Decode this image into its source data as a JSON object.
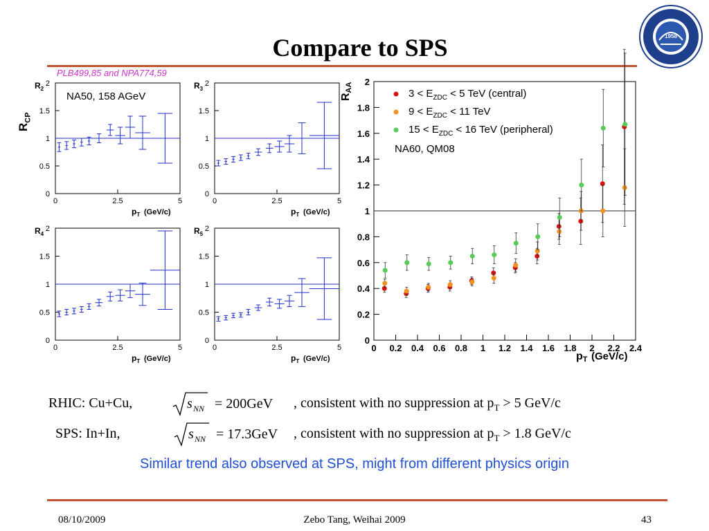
{
  "slide": {
    "title": "Compare to SPS",
    "reference": "PLB499,85 and NPA774,59",
    "main_ylabel_main": "R",
    "main_ylabel_sub": "CP",
    "rhic_line": {
      "prefix": "RHIC: Cu+Cu,",
      "energy": "= 200GeV",
      "suffix": ",  consistent with no suppression at p",
      "tail": " > 5 GeV/c"
    },
    "sps_line": {
      "prefix": "SPS:   In+In,",
      "energy": "= 17.3GeV",
      "suffix": ",  consistent with no suppression at p",
      "tail": " > 1.8 GeV/c"
    },
    "sqrt_label": "s",
    "sqrt_sub": "NN",
    "pt_sub": "T",
    "note": "Similar trend also observed at SPS, might from different physics origin",
    "footer": {
      "date": "08/10/2009",
      "center": "Zebo Tang, Weihai 2009",
      "page": "43"
    },
    "logo": {
      "year": "1958",
      "icon": "university-seal-icon"
    }
  },
  "chart_data": [
    {
      "type": "scatter",
      "panel": "R2",
      "ylabel": "R2",
      "xlabel": "pT (GeV/c)",
      "annotation": "NA50, 158 AGeV",
      "xlim": [
        0,
        5
      ],
      "ylim": [
        0,
        2
      ],
      "xticks": [
        "0",
        "2.5",
        "5"
      ],
      "yticks": [
        "0",
        "0.5",
        "1",
        "1.5",
        "2"
      ],
      "reference_line": 1,
      "points": [
        {
          "x": 0.15,
          "y": 0.84,
          "err": 0.08,
          "xerr": 0.05
        },
        {
          "x": 0.45,
          "y": 0.87,
          "err": 0.07,
          "xerr": 0.05
        },
        {
          "x": 0.75,
          "y": 0.9,
          "err": 0.07,
          "xerr": 0.05
        },
        {
          "x": 1.05,
          "y": 0.93,
          "err": 0.07,
          "xerr": 0.05
        },
        {
          "x": 1.35,
          "y": 0.95,
          "err": 0.07,
          "xerr": 0.05
        },
        {
          "x": 1.75,
          "y": 1.0,
          "err": 0.08,
          "xerr": 0.15
        },
        {
          "x": 2.2,
          "y": 1.15,
          "err": 0.1,
          "xerr": 0.15
        },
        {
          "x": 2.6,
          "y": 1.05,
          "err": 0.15,
          "xerr": 0.2
        },
        {
          "x": 3.0,
          "y": 1.2,
          "err": 0.2,
          "xerr": 0.2
        },
        {
          "x": 3.5,
          "y": 1.1,
          "err": 0.3,
          "xerr": 0.3
        },
        {
          "x": 4.4,
          "y": 1.0,
          "err": 0.45,
          "xerr": 0.6
        }
      ]
    },
    {
      "type": "scatter",
      "panel": "R3",
      "ylabel": "R3",
      "xlabel": "pT (GeV/c)",
      "xlim": [
        0,
        5
      ],
      "ylim": [
        0,
        2
      ],
      "xticks": [
        "0",
        "2.5",
        "5"
      ],
      "yticks": [
        "0",
        "0.5",
        "1",
        "1.5",
        "2"
      ],
      "reference_line": 1,
      "points": [
        {
          "x": 0.15,
          "y": 0.55,
          "err": 0.05,
          "xerr": 0.05
        },
        {
          "x": 0.45,
          "y": 0.58,
          "err": 0.05,
          "xerr": 0.05
        },
        {
          "x": 0.75,
          "y": 0.62,
          "err": 0.05,
          "xerr": 0.05
        },
        {
          "x": 1.05,
          "y": 0.65,
          "err": 0.05,
          "xerr": 0.05
        },
        {
          "x": 1.35,
          "y": 0.68,
          "err": 0.05,
          "xerr": 0.05
        },
        {
          "x": 1.75,
          "y": 0.75,
          "err": 0.06,
          "xerr": 0.15
        },
        {
          "x": 2.2,
          "y": 0.82,
          "err": 0.08,
          "xerr": 0.15
        },
        {
          "x": 2.6,
          "y": 0.85,
          "err": 0.1,
          "xerr": 0.2
        },
        {
          "x": 3.0,
          "y": 0.9,
          "err": 0.15,
          "xerr": 0.2
        },
        {
          "x": 3.5,
          "y": 1.0,
          "err": 0.28,
          "xerr": 0.3
        },
        {
          "x": 4.4,
          "y": 1.05,
          "err": 0.6,
          "xerr": 0.6
        }
      ]
    },
    {
      "type": "scatter",
      "panel": "R4",
      "ylabel": "R4",
      "xlabel": "pT (GeV/c)",
      "xlim": [
        0,
        5
      ],
      "ylim": [
        0,
        2
      ],
      "xticks": [
        "0",
        "2.5",
        "5"
      ],
      "yticks": [
        "0",
        "0.5",
        "1",
        "1.5",
        "2"
      ],
      "reference_line": 1,
      "points": [
        {
          "x": 0.15,
          "y": 0.47,
          "err": 0.05,
          "xerr": 0.05
        },
        {
          "x": 0.45,
          "y": 0.5,
          "err": 0.05,
          "xerr": 0.05
        },
        {
          "x": 0.75,
          "y": 0.52,
          "err": 0.05,
          "xerr": 0.05
        },
        {
          "x": 1.05,
          "y": 0.55,
          "err": 0.05,
          "xerr": 0.05
        },
        {
          "x": 1.35,
          "y": 0.6,
          "err": 0.05,
          "xerr": 0.05
        },
        {
          "x": 1.75,
          "y": 0.67,
          "err": 0.06,
          "xerr": 0.15
        },
        {
          "x": 2.2,
          "y": 0.78,
          "err": 0.08,
          "xerr": 0.15
        },
        {
          "x": 2.6,
          "y": 0.8,
          "err": 0.1,
          "xerr": 0.2
        },
        {
          "x": 3.0,
          "y": 0.88,
          "err": 0.12,
          "xerr": 0.2
        },
        {
          "x": 3.5,
          "y": 0.82,
          "err": 0.2,
          "xerr": 0.3
        },
        {
          "x": 4.4,
          "y": 1.25,
          "err": 0.7,
          "xerr": 0.6
        }
      ]
    },
    {
      "type": "scatter",
      "panel": "R5",
      "ylabel": "R5",
      "xlabel": "pT (GeV/c)",
      "xlim": [
        0,
        5
      ],
      "ylim": [
        0,
        2
      ],
      "xticks": [
        "0",
        "2.5",
        "5"
      ],
      "yticks": [
        "0",
        "0.5",
        "1",
        "1.5",
        "2"
      ],
      "reference_line": 1,
      "points": [
        {
          "x": 0.15,
          "y": 0.38,
          "err": 0.04,
          "xerr": 0.05
        },
        {
          "x": 0.45,
          "y": 0.4,
          "err": 0.04,
          "xerr": 0.05
        },
        {
          "x": 0.75,
          "y": 0.44,
          "err": 0.04,
          "xerr": 0.05
        },
        {
          "x": 1.05,
          "y": 0.45,
          "err": 0.04,
          "xerr": 0.05
        },
        {
          "x": 1.35,
          "y": 0.5,
          "err": 0.05,
          "xerr": 0.05
        },
        {
          "x": 1.75,
          "y": 0.58,
          "err": 0.05,
          "xerr": 0.15
        },
        {
          "x": 2.2,
          "y": 0.68,
          "err": 0.07,
          "xerr": 0.15
        },
        {
          "x": 2.6,
          "y": 0.65,
          "err": 0.08,
          "xerr": 0.2
        },
        {
          "x": 3.0,
          "y": 0.7,
          "err": 0.1,
          "xerr": 0.2
        },
        {
          "x": 3.5,
          "y": 0.85,
          "err": 0.25,
          "xerr": 0.3
        },
        {
          "x": 4.4,
          "y": 0.92,
          "err": 0.55,
          "xerr": 0.6
        }
      ]
    },
    {
      "type": "scatter",
      "panel": "RAA",
      "ylabel": "RAA",
      "xlabel": "pT (GeV/c)",
      "annotation": "NA60, QM08",
      "xlim": [
        0,
        2.4
      ],
      "ylim": [
        0,
        2
      ],
      "xticks": [
        "0",
        "0.2",
        "0.4",
        "0.6",
        "0.8",
        "1",
        "1.2",
        "1.4",
        "1.6",
        "1.8",
        "2",
        "2.2",
        "2.4"
      ],
      "yticks": [
        "0",
        "0.2",
        "0.4",
        "0.6",
        "0.8",
        "1",
        "1.2",
        "1.4",
        "1.6",
        "1.8",
        "2"
      ],
      "reference_line": 1,
      "series": [
        {
          "name": "3 < EZDC < 5 TeV (central)",
          "label_main": "3 < E",
          "label_sub": "ZDC",
          "label_tail": " < 5 TeV (central)",
          "color": "#dd1111",
          "x": [
            0.1,
            0.3,
            0.5,
            0.7,
            0.9,
            1.1,
            1.3,
            1.5,
            1.7,
            1.9,
            2.1,
            2.3
          ],
          "y": [
            0.4,
            0.36,
            0.4,
            0.41,
            0.46,
            0.52,
            0.56,
            0.65,
            0.88,
            0.92,
            1.21,
            1.65
          ],
          "err": [
            0.03,
            0.03,
            0.03,
            0.03,
            0.03,
            0.04,
            0.04,
            0.06,
            0.1,
            0.18,
            0.3,
            0.6
          ]
        },
        {
          "name": "9 < EZDC < 11 TeV",
          "label_main": "9 < E",
          "label_sub": "ZDC",
          "label_tail": " < 11 TeV",
          "color": "#f0901e",
          "x": [
            0.1,
            0.3,
            0.5,
            0.7,
            0.9,
            1.1,
            1.3,
            1.5,
            1.7,
            1.9,
            2.1,
            2.3
          ],
          "y": [
            0.44,
            0.38,
            0.41,
            0.43,
            0.45,
            0.48,
            0.58,
            0.69,
            0.84,
            1.0,
            1.0,
            1.18
          ],
          "err": [
            0.03,
            0.03,
            0.03,
            0.03,
            0.03,
            0.04,
            0.05,
            0.07,
            0.1,
            0.15,
            0.2,
            0.3
          ]
        },
        {
          "name": "15 < EZDC < 16 TeV (peripheral)",
          "label_main": "15 < E",
          "label_sub": "ZDC",
          "label_tail": " < 16 TeV (peripheral)",
          "color": "#55cc55",
          "x": [
            0.1,
            0.3,
            0.5,
            0.7,
            0.9,
            1.1,
            1.3,
            1.5,
            1.7,
            1.9,
            2.1,
            2.3
          ],
          "y": [
            0.54,
            0.6,
            0.59,
            0.6,
            0.65,
            0.66,
            0.75,
            0.8,
            0.95,
            1.2,
            1.64,
            1.67
          ],
          "err": [
            0.06,
            0.06,
            0.05,
            0.05,
            0.06,
            0.07,
            0.08,
            0.1,
            0.15,
            0.2,
            0.3,
            0.55
          ]
        }
      ],
      "legend_position": "top-left"
    }
  ]
}
